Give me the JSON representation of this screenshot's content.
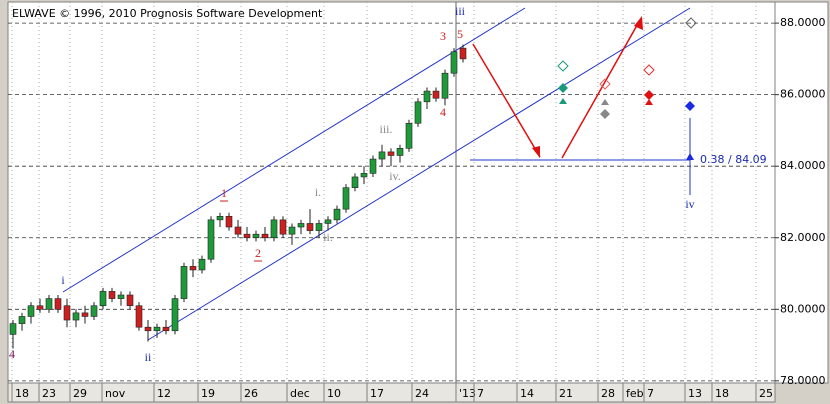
{
  "chart_data": {
    "type": "candlestick",
    "title": "ELWAVE © 1996, 2010 Prognosis Software Development",
    "ylim": [
      77.94,
      88.59
    ],
    "yticks": [
      {
        "value": 78,
        "label": "78.0000"
      },
      {
        "value": 80,
        "label": "80.0000"
      },
      {
        "value": 82,
        "label": "82.0000"
      },
      {
        "value": 84,
        "label": "84.0000"
      },
      {
        "value": 86,
        "label": "86.0000"
      },
      {
        "value": 88,
        "label": "88.0000"
      }
    ],
    "xtick_labels": [
      "18",
      "23",
      "29",
      "nov",
      "12",
      "19",
      "26",
      "dec",
      "10",
      "17",
      "24",
      "'13",
      "7",
      "14",
      "21",
      "28",
      "feb",
      "7",
      "13",
      "18",
      "25"
    ],
    "up_color": "#1f9a3a",
    "down_color": "#cc1f1f",
    "open": [
      79.3,
      79.6,
      79.8,
      80.1,
      80.0,
      80.3,
      80.1,
      79.7,
      79.9,
      79.8,
      80.1,
      80.5,
      80.3,
      80.4,
      80.1,
      79.5,
      79.4,
      79.5,
      79.4,
      80.3,
      81.2,
      81.1,
      81.4,
      82.5,
      82.6,
      82.3,
      82.1,
      82.0,
      82.1,
      82.0,
      82.5,
      82.1,
      82.3,
      82.4,
      82.2,
      82.4,
      82.5,
      82.8,
      83.4,
      83.7,
      83.8,
      84.2,
      84.4,
      84.3,
      84.5,
      85.2,
      85.8,
      86.1,
      85.9,
      86.6,
      87.3
    ],
    "high": [
      79.7,
      79.9,
      80.2,
      80.3,
      80.4,
      80.4,
      80.3,
      80.0,
      80.1,
      80.2,
      80.6,
      80.6,
      80.5,
      80.5,
      80.2,
      79.7,
      79.6,
      79.7,
      80.4,
      81.3,
      81.4,
      81.5,
      82.6,
      82.7,
      82.7,
      82.5,
      82.3,
      82.2,
      82.3,
      82.6,
      82.6,
      82.4,
      82.5,
      82.8,
      82.5,
      82.6,
      82.9,
      83.5,
      83.8,
      84.0,
      84.3,
      84.6,
      84.5,
      84.6,
      85.3,
      85.9,
      86.2,
      86.2,
      86.7,
      87.3,
      87.4
    ],
    "low": [
      78.9,
      79.4,
      79.6,
      79.9,
      79.9,
      79.9,
      79.5,
      79.5,
      79.6,
      79.7,
      80.0,
      80.2,
      80.1,
      80.0,
      79.4,
      79.1,
      79.2,
      79.3,
      79.3,
      80.2,
      80.9,
      81.0,
      81.3,
      82.3,
      82.2,
      82.0,
      81.9,
      81.9,
      81.9,
      81.9,
      82.0,
      81.8,
      82.1,
      82.1,
      82.0,
      82.2,
      82.4,
      82.7,
      83.3,
      83.5,
      83.7,
      84.0,
      84.0,
      84.1,
      84.4,
      85.1,
      85.6,
      85.8,
      85.7,
      86.5,
      86.9
    ],
    "close": [
      79.6,
      79.8,
      80.1,
      80.0,
      80.3,
      80.0,
      79.7,
      79.9,
      79.8,
      80.1,
      80.5,
      80.3,
      80.4,
      80.1,
      79.5,
      79.4,
      79.5,
      79.4,
      80.3,
      81.2,
      81.1,
      81.4,
      82.5,
      82.6,
      82.3,
      82.1,
      82.0,
      82.1,
      82.0,
      82.5,
      82.1,
      82.3,
      82.4,
      82.2,
      82.4,
      82.5,
      82.8,
      83.4,
      83.7,
      83.8,
      84.2,
      84.4,
      84.3,
      84.5,
      85.2,
      85.8,
      86.1,
      85.9,
      86.6,
      87.2,
      87.0
    ],
    "annotations": [
      {
        "text": "i",
        "color": "#1a2ab0"
      },
      {
        "text": "ii",
        "color": "#1a2ab0"
      },
      {
        "text": "iii",
        "color": "#1a2ab0"
      },
      {
        "text": "iv",
        "color": "#1a2ab0"
      },
      {
        "text": "1",
        "color": "#cc1f1f"
      },
      {
        "text": "2",
        "color": "#cc1f1f"
      },
      {
        "text": "3",
        "color": "#cc1f1f"
      },
      {
        "text": "4",
        "color": "#cc1f1f"
      },
      {
        "text": "5",
        "color": "#cc1f1f"
      },
      {
        "text": "i.",
        "color": "#888888"
      },
      {
        "text": "ii.",
        "color": "#888888"
      },
      {
        "text": "iii.",
        "color": "#888888"
      },
      {
        "text": "iv.",
        "color": "#888888"
      },
      {
        "text": "4",
        "color": "#7a1050"
      }
    ],
    "target_label": "0.38 / 84.09"
  }
}
